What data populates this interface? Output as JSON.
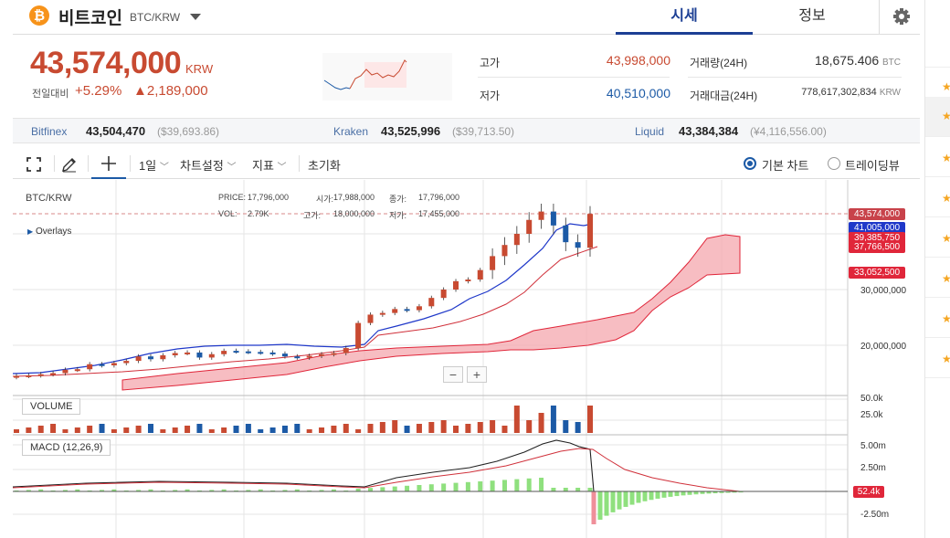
{
  "header": {
    "coin_logo": "₿",
    "coin_name": "비트코인",
    "pair": "BTC/KRW",
    "tabs": [
      {
        "label": "시세",
        "active": true
      },
      {
        "label": "정보",
        "active": false
      }
    ],
    "settings_icon": "gear-icon"
  },
  "price": {
    "current": "43,574,000",
    "unit": "KRW",
    "change_label": "전일대비",
    "change_pct": "+5.29%",
    "change_amt": "▲2,189,000"
  },
  "stats": {
    "high_label": "고가",
    "high": "43,998,000",
    "low_label": "저가",
    "low": "40,510,000",
    "volume_label": "거래량(24H)",
    "volume": "18,675.406",
    "volume_unit": "BTC",
    "amount_label": "거래대금(24H)",
    "amount": "778,617,302,834",
    "amount_unit": "KRW"
  },
  "exchanges": [
    {
      "name": "Bitfinex",
      "price": "43,504,470",
      "usd": "($39,693.86)"
    },
    {
      "name": "Kraken",
      "price": "43,525,996",
      "usd": "($39,713.50)"
    },
    {
      "name": "Liquid",
      "price": "43,384,384",
      "usd": "(¥4,116,556.00)"
    }
  ],
  "toolbar": {
    "interval": "1일",
    "chart_settings": "차트설정",
    "indicators": "지표",
    "reset": "초기화",
    "basic_chart": "기본 차트",
    "tradingview": "트레이딩뷰"
  },
  "chart_info": {
    "symbol": "BTC/KRW",
    "overlays": "Overlays",
    "price_label": "PRICE:",
    "price_val": "17,796,000",
    "open_label": "시가:",
    "open_val": "17,988,000",
    "close_label": "종가:",
    "close_val": "17,796,000",
    "vol_label": "VOL:",
    "vol_val": "2.79K",
    "high_label": "고가:",
    "high_val": "18,000,000",
    "low_label": "저가:",
    "low_val": "17,455,000"
  },
  "price_tags": [
    {
      "text": "43,574,000",
      "color": "#c8424a"
    },
    {
      "text": "41,005,000",
      "color": "#1f38c9"
    },
    {
      "text": "39,385,750",
      "color": "#e0263a"
    },
    {
      "text": "37,766,500",
      "color": "#e0263a"
    },
    {
      "text": "33,052,500",
      "color": "#e0263a"
    }
  ],
  "axis": {
    "price_ticks": [
      "30,000,000",
      "20,000,000"
    ],
    "volume_ticks": [
      "50.0k",
      "25.0k"
    ],
    "macd_ticks": [
      "5.00m",
      "2.50m",
      "-2.50m"
    ],
    "macd_tag": "52.4k"
  },
  "panes": {
    "volume": "VOLUME",
    "macd": "MACD (12,26,9)"
  },
  "zoom": {
    "minus": "−",
    "plus": "+"
  },
  "colors": {
    "up": "#c84a31",
    "down": "#1c5aa6",
    "accent": "#1c3f94",
    "cloud": "#f4a7ad"
  },
  "chart_data": {
    "type": "candlestick",
    "series": [
      {
        "close": [
          14.5,
          14.6,
          14.8,
          15.0,
          15.6,
          15.7,
          16.6,
          16.4,
          16.8,
          17.2,
          18.0,
          17.5,
          18.2,
          18.6,
          18.7,
          17.8,
          18.4,
          19.0,
          18.9,
          18.8,
          18.7,
          18.5,
          18.0,
          17.8,
          18.1,
          18.4,
          18.6,
          19.5,
          24.0,
          25.5,
          25.8,
          26.5,
          26.3,
          27.0,
          28.5,
          30.0,
          31.5,
          31.8,
          33.5,
          36.0,
          38.0,
          40.0,
          42.5,
          44.0,
          41.5,
          38.5,
          37.5,
          43.574
        ]
      }
    ]
  }
}
